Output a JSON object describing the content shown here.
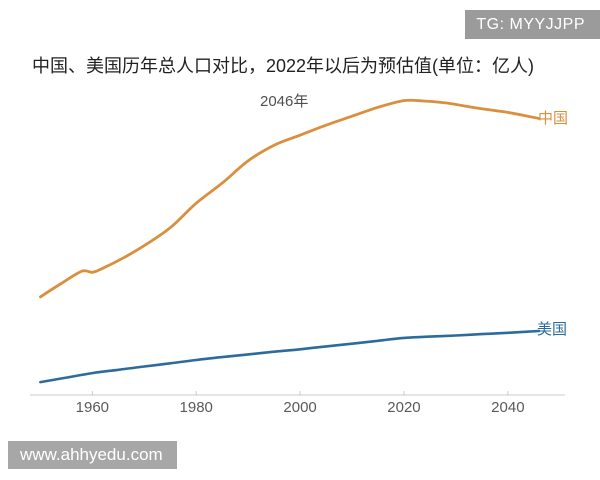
{
  "page": {
    "background": "#FFFFFF"
  },
  "badge": {
    "text": "TG: MYYJJPP",
    "bg": "#9B9B9B",
    "fg": "#FFFFFF"
  },
  "watermark": {
    "text": "www.ahhyedu.com",
    "bg": "#A7A7A7",
    "fg": "#FFFFFF"
  },
  "chart_data": {
    "type": "line",
    "title": "中国、美国历年总人口对比，2022年以后为预估值(单位：亿人)",
    "unit": "亿人",
    "estimated_after_year": 2022,
    "annotation": {
      "text": "2046年",
      "color": "#4F4F4F"
    },
    "xlabel": "",
    "ylabel": "",
    "x_ticks": [
      1960,
      1980,
      2000,
      2020,
      2040
    ],
    "x_tick_labels": [
      "1960",
      "1980",
      "2000",
      "2020",
      "2040"
    ],
    "xlim": [
      1948,
      2051
    ],
    "ylim": [
      1.0,
      14.6
    ],
    "grid": false,
    "legend_position": "line-end",
    "axis_color": "#D5D5D5",
    "tick_color": "#C9C9C9",
    "tick_label_color": "#5A5A5A",
    "series": [
      {
        "name": "中国",
        "color": "#D98F3D",
        "line_width": 2.8,
        "points": [
          [
            1950,
            5.4
          ],
          [
            1954,
            6.0
          ],
          [
            1958,
            6.55
          ],
          [
            1960,
            6.5
          ],
          [
            1962,
            6.68
          ],
          [
            1966,
            7.15
          ],
          [
            1970,
            7.7
          ],
          [
            1975,
            8.5
          ],
          [
            1980,
            9.6
          ],
          [
            1985,
            10.5
          ],
          [
            1990,
            11.5
          ],
          [
            1995,
            12.2
          ],
          [
            2000,
            12.65
          ],
          [
            2005,
            13.1
          ],
          [
            2010,
            13.5
          ],
          [
            2015,
            13.9
          ],
          [
            2020,
            14.2
          ],
          [
            2024,
            14.18
          ],
          [
            2028,
            14.1
          ],
          [
            2034,
            13.87
          ],
          [
            2040,
            13.67
          ],
          [
            2046,
            13.4
          ]
        ]
      },
      {
        "name": "美国",
        "color": "#2C6B9C",
        "line_width": 2.6,
        "points": [
          [
            1950,
            1.58
          ],
          [
            1955,
            1.78
          ],
          [
            1960,
            1.98
          ],
          [
            1965,
            2.13
          ],
          [
            1970,
            2.28
          ],
          [
            1975,
            2.42
          ],
          [
            1980,
            2.57
          ],
          [
            1985,
            2.7
          ],
          [
            1990,
            2.82
          ],
          [
            1995,
            2.94
          ],
          [
            2000,
            3.05
          ],
          [
            2005,
            3.18
          ],
          [
            2010,
            3.3
          ],
          [
            2015,
            3.43
          ],
          [
            2020,
            3.56
          ],
          [
            2025,
            3.62
          ],
          [
            2030,
            3.67
          ],
          [
            2035,
            3.73
          ],
          [
            2040,
            3.79
          ],
          [
            2046,
            3.87
          ]
        ]
      }
    ]
  }
}
